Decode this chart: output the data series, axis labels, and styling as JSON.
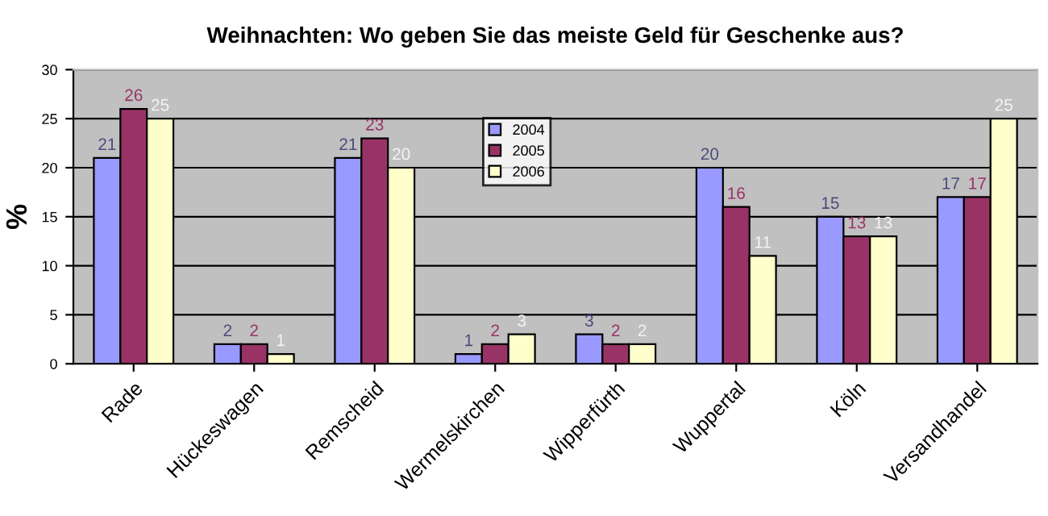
{
  "chart_data": {
    "type": "bar",
    "title": "Weihnachten: Wo geben Sie das meiste Geld für Geschenke aus?",
    "ylabel": "%",
    "categories": [
      "Rade",
      "Hückeswagen",
      "Remscheid",
      "Wermelskirchen",
      "Wipperfürth",
      "Wuppertal",
      "Köln",
      "Versandhandel"
    ],
    "series": [
      {
        "name": "2004",
        "color": "#9999ff",
        "values": [
          21,
          2,
          21,
          1,
          3,
          20,
          15,
          17
        ]
      },
      {
        "name": "2005",
        "color": "#993366",
        "values": [
          26,
          2,
          23,
          2,
          2,
          16,
          13,
          17
        ]
      },
      {
        "name": "2006",
        "color": "#ffffcc",
        "values": [
          25,
          1,
          20,
          3,
          2,
          11,
          13,
          25
        ]
      }
    ],
    "ylim": [
      0,
      30
    ],
    "yticks": [
      0,
      5,
      10,
      15,
      20,
      25,
      30
    ],
    "grid": "y",
    "legend": "top",
    "data_labels": true
  }
}
